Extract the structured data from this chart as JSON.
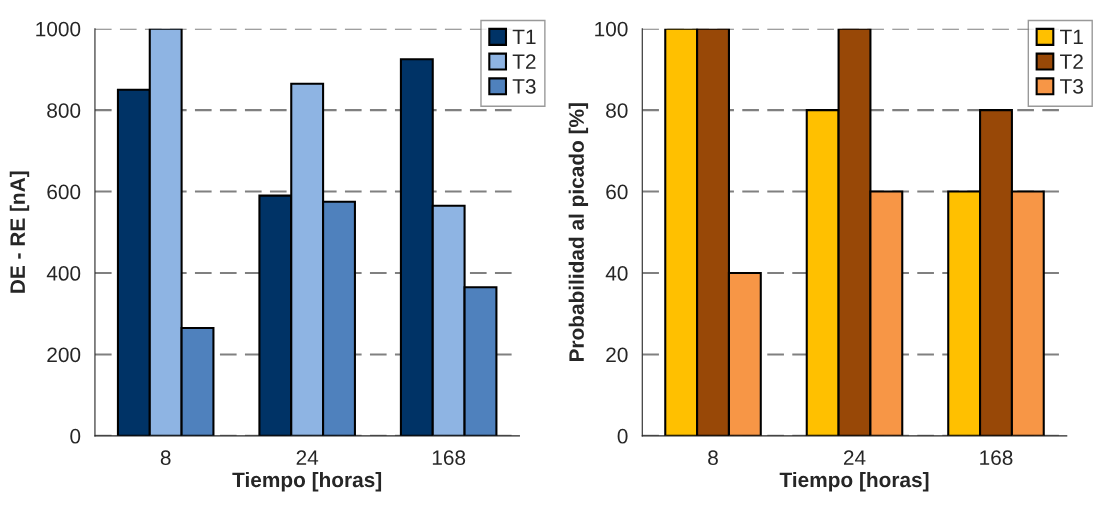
{
  "chart_data": [
    {
      "type": "bar",
      "categories": [
        "8",
        "24",
        "168"
      ],
      "xlabel": "Tiempo [horas]",
      "ylabel": "DE - RE [nA]",
      "ylim": [
        0,
        1000
      ],
      "yticks": [
        0,
        200,
        400,
        600,
        800,
        1000
      ],
      "grid": "y",
      "legend": "top right",
      "series": [
        {
          "name": "T1",
          "color": "#003366",
          "values": [
            850,
            590,
            925
          ]
        },
        {
          "name": "T2",
          "color": "#8eb4e3",
          "values": [
            1000,
            865,
            565
          ]
        },
        {
          "name": "T3",
          "color": "#4f81bd",
          "values": [
            265,
            575,
            365
          ]
        }
      ]
    },
    {
      "type": "bar",
      "categories": [
        "8",
        "24",
        "168"
      ],
      "xlabel": "Tiempo [horas]",
      "ylabel": "Probabilidad al picado [%]",
      "ylim": [
        0,
        100
      ],
      "yticks": [
        0,
        20,
        40,
        60,
        80,
        100
      ],
      "grid": "y",
      "legend": "top right",
      "series": [
        {
          "name": "T1",
          "color": "#ffc000",
          "values": [
            100,
            80,
            60
          ]
        },
        {
          "name": "T2",
          "color": "#984807",
          "values": [
            100,
            100,
            80
          ]
        },
        {
          "name": "T3",
          "color": "#f79646",
          "values": [
            40,
            60,
            60
          ]
        }
      ]
    }
  ]
}
